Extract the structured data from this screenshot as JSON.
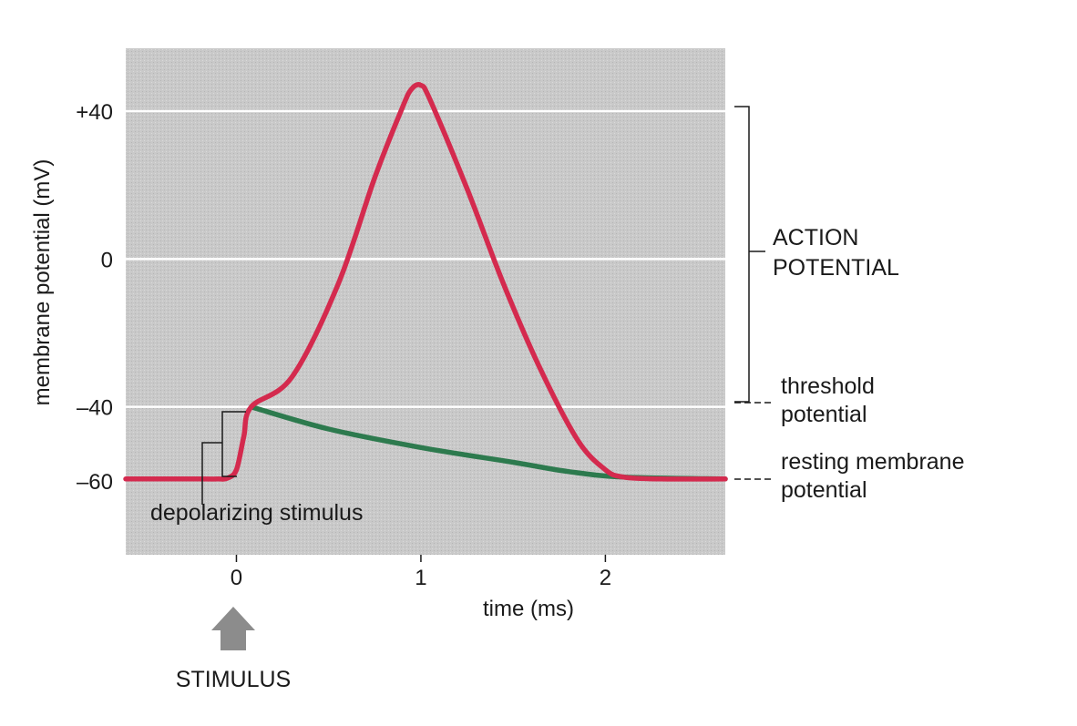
{
  "chart_data": {
    "type": "line",
    "title": "",
    "xlabel": "time (ms)",
    "ylabel": "membrane potential (mV)",
    "xlim": [
      -0.6,
      2.65
    ],
    "ylim": [
      -80,
      57
    ],
    "x_ticks": [
      0,
      1,
      2
    ],
    "x_tick_labels": [
      "0",
      "1",
      "2"
    ],
    "y_ticks": [
      40,
      0,
      -40,
      -60
    ],
    "y_tick_labels": [
      "+40",
      "0",
      "–40",
      "–60"
    ],
    "grid": true,
    "series": [
      {
        "color": "#d42a4e",
        "x": [
          -0.6,
          -0.2,
          -0.1,
          -0.05,
          0.0,
          0.04,
          0.08,
          0.3,
          0.55,
          0.75,
          0.9,
          0.95,
          1.0,
          1.05,
          1.25,
          1.45,
          1.65,
          1.85,
          2.0,
          2.1,
          2.3,
          2.65
        ],
        "y": [
          -59.5,
          -59.5,
          -59.5,
          -59.3,
          -57.0,
          -48.0,
          -40.0,
          -32.0,
          -7.0,
          22.0,
          41.0,
          46.0,
          47.0,
          43.0,
          19.0,
          -7.0,
          -30.0,
          -49.0,
          -57.0,
          -59.0,
          -59.5,
          -59.5
        ]
      },
      {
        "color": "#2d7a4e",
        "x": [
          0.08,
          0.5,
          1.0,
          1.5,
          1.8,
          2.1,
          2.65
        ],
        "y": [
          -40.0,
          -46.0,
          -51.0,
          -55.0,
          -57.5,
          -59.0,
          -59.5
        ]
      }
    ],
    "annotations": {
      "action_potential": [
        "ACTION",
        "POTENTIAL"
      ],
      "threshold": [
        "threshold",
        "potential"
      ],
      "resting": [
        "resting membrane",
        "potential"
      ],
      "depolarizing": "depolarizing stimulus",
      "stimulus": "STIMULUS"
    }
  },
  "colors": {
    "plot_background": "#c9c9c9",
    "gridline": "#ffffff",
    "action_potential_curve": "#d42a4e",
    "subthreshold_curve": "#2d7a4e",
    "stimulus_arrow": "#8c8c8c",
    "highlight_text": "#d42a4e"
  },
  "icons": {
    "stimulus_arrow": "up-arrow-icon"
  }
}
